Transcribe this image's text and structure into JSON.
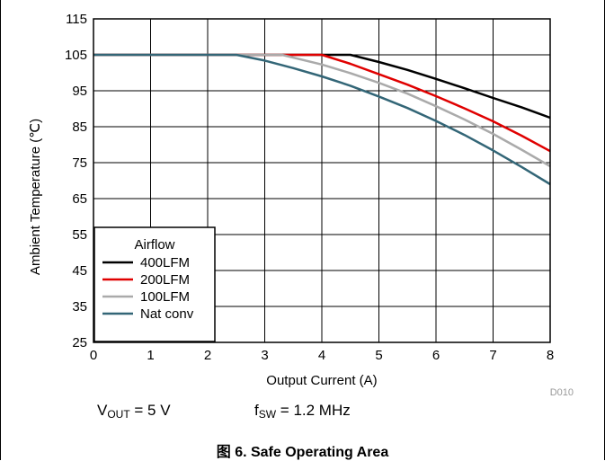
{
  "figure": {
    "chart_id": "D010",
    "caption": "图 6. Safe Operating Area",
    "conditions": {
      "vout_symbol": "V",
      "vout_subscript": "OUT",
      "vout_value": " = 5 V",
      "fsw_symbol": "f",
      "fsw_subscript": "SW",
      "fsw_value": " = 1.2 MHz"
    }
  },
  "chart_data": {
    "type": "line",
    "title": "",
    "xlabel": "Output Current (A)",
    "ylabel": "Ambient Temperature (℃)",
    "xlim": [
      0,
      8
    ],
    "ylim": [
      25,
      115
    ],
    "x_ticks": [
      0,
      1,
      2,
      3,
      4,
      5,
      6,
      7,
      8
    ],
    "y_ticks": [
      25,
      35,
      45,
      55,
      65,
      75,
      85,
      95,
      105,
      115
    ],
    "grid": true,
    "legend": {
      "title": "Airflow",
      "placement": "bottom-left"
    },
    "series": [
      {
        "name": "400LFM",
        "color": "#000000",
        "x": [
          0,
          4.5,
          5,
          5.5,
          6,
          6.5,
          7,
          7.5,
          8
        ],
        "y": [
          105,
          105,
          103,
          100.8,
          98.3,
          95.7,
          93,
          90.4,
          87.5
        ]
      },
      {
        "name": "200LFM",
        "color": "#e00000",
        "x": [
          0,
          4,
          4.5,
          5,
          5.5,
          6,
          6.5,
          7,
          7.5,
          8
        ],
        "y": [
          105,
          105,
          102.5,
          99.6,
          96.7,
          93.5,
          90.1,
          86.5,
          82.5,
          78.2
        ]
      },
      {
        "name": "100LFM",
        "color": "#aaaaaa",
        "x": [
          0,
          3.3,
          4,
          4.5,
          5,
          5.5,
          6,
          6.5,
          7,
          7.5,
          8
        ],
        "y": [
          105,
          105,
          102.3,
          99.9,
          97.2,
          94.2,
          90.7,
          87,
          83,
          78.6,
          74
        ]
      },
      {
        "name": "Nat conv",
        "color": "#336677",
        "x": [
          0,
          2.5,
          3,
          3.5,
          4,
          4.5,
          5,
          5.5,
          6,
          6.5,
          7,
          7.5,
          8
        ],
        "y": [
          105,
          105,
          103.4,
          101.3,
          99,
          96.4,
          93.4,
          90.2,
          86.6,
          82.7,
          78.4,
          73.8,
          69
        ]
      }
    ]
  }
}
